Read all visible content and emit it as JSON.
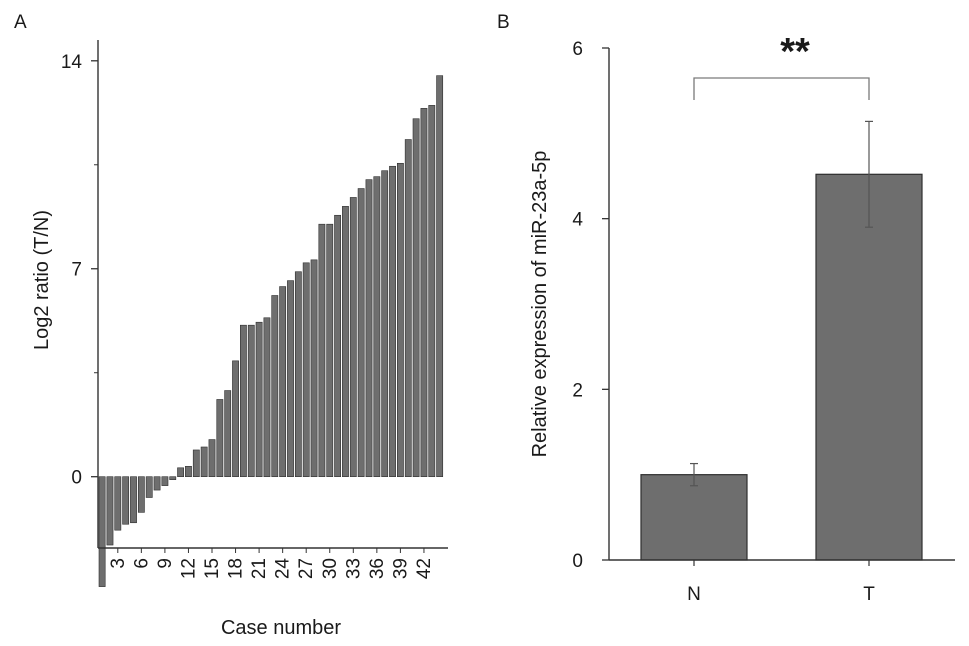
{
  "colors": {
    "bar": "#6e6e6e",
    "bar_stroke": "#2e2e2e",
    "axis": "#333333"
  },
  "chart_data": [
    {
      "panel": "A",
      "type": "bar",
      "title": "",
      "xlabel": "Case number",
      "ylabel": "Log2 ratio (T/N)",
      "ylim": [
        -2.4,
        14.7
      ],
      "yticks": [
        0,
        7,
        14
      ],
      "xtick_labels": [
        "3",
        "6",
        "9",
        "12",
        "15",
        "18",
        "21",
        "24",
        "27",
        "30",
        "33",
        "36",
        "39",
        "42"
      ],
      "xtick_cases": [
        3,
        6,
        9,
        12,
        15,
        18,
        21,
        24,
        27,
        30,
        33,
        36,
        39,
        42
      ],
      "categories": [
        1,
        2,
        3,
        4,
        5,
        6,
        7,
        8,
        9,
        10,
        11,
        12,
        13,
        14,
        15,
        16,
        17,
        18,
        19,
        20,
        21,
        22,
        23,
        24,
        25,
        26,
        27,
        28,
        29,
        30,
        31,
        32,
        33,
        34,
        35,
        36,
        37,
        38,
        39,
        40,
        41,
        42,
        43,
        44
      ],
      "values": [
        -3.7,
        -2.3,
        -1.8,
        -1.6,
        -1.55,
        -1.2,
        -0.7,
        -0.45,
        -0.3,
        -0.1,
        0.3,
        0.35,
        0.9,
        1.0,
        1.25,
        2.6,
        2.9,
        3.9,
        5.1,
        5.1,
        5.2,
        5.35,
        6.1,
        6.4,
        6.6,
        6.9,
        7.2,
        7.3,
        8.5,
        8.5,
        8.8,
        9.1,
        9.4,
        9.7,
        10.0,
        10.1,
        10.3,
        10.45,
        10.55,
        11.35,
        12.05,
        12.4,
        12.5,
        13.5
      ],
      "grid": false,
      "legend": "none"
    },
    {
      "panel": "B",
      "type": "bar",
      "title": "",
      "xlabel": "",
      "ylabel": "Relative expression of miR-23a-5p",
      "ylim": [
        0,
        6
      ],
      "yticks": [
        0,
        2,
        4,
        6
      ],
      "categories": [
        "N",
        "T"
      ],
      "values": [
        1.0,
        4.52
      ],
      "error": [
        0.13,
        0.62
      ],
      "significance": "**",
      "grid": false,
      "legend": "none"
    }
  ]
}
